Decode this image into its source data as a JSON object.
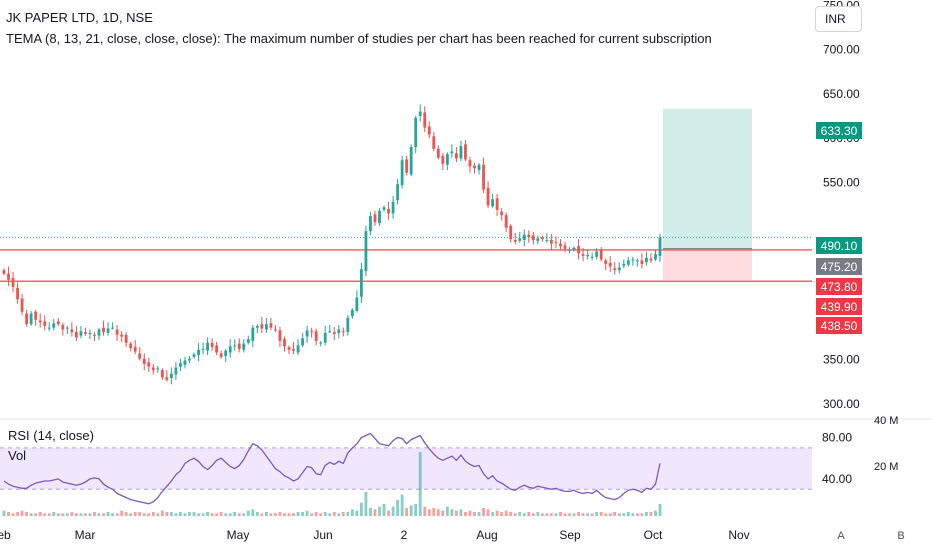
{
  "header": {
    "symbol_line": "JK PAPER LTD, 1D, NSE",
    "study_warning": "TEMA (8, 13, 21, close, close, close): The maximum number of studies per chart has been reached for current subscription"
  },
  "currency_button": "INR",
  "colors": {
    "up": "#26a69a",
    "down": "#ef5350",
    "resistance_line": "#e53935",
    "target_zone": "#b2dfdb",
    "stop_zone": "#ffcdd2",
    "rsi_line": "#7e57c2",
    "rsi_band": "#ede1fb",
    "label_green": "#089981",
    "label_gray": "#787b86",
    "label_red": "#f23645"
  },
  "chart_data": {
    "type": "candlestick",
    "price_axis": {
      "ticks": [
        "300.00",
        "350.00",
        "550.00",
        "600.00",
        "650.00",
        "700.00",
        "750.00"
      ],
      "range": [
        284,
        756
      ]
    },
    "time_axis": {
      "labels": [
        "eb",
        "Mar",
        "May",
        "Jun",
        "2",
        "Aug",
        "Sep",
        "Oct",
        "Nov"
      ]
    },
    "closes": [
      447,
      440,
      432,
      418,
      404,
      390,
      402,
      395,
      392,
      388,
      386,
      391,
      390,
      384,
      386,
      381,
      375,
      382,
      379,
      380,
      377,
      384,
      381,
      385,
      386,
      378,
      376,
      369,
      363,
      359,
      351,
      345,
      342,
      338,
      340,
      330,
      327,
      334,
      341,
      346,
      349,
      351,
      356,
      361,
      362,
      369,
      364,
      358,
      353,
      360,
      365,
      366,
      362,
      368,
      373,
      386,
      388,
      385,
      390,
      386,
      383,
      371,
      365,
      361,
      360,
      366,
      374,
      383,
      381,
      371,
      369,
      380,
      382,
      379,
      384,
      381,
      397,
      406,
      420,
      452,
      495,
      512,
      505,
      518,
      522,
      515,
      528,
      548,
      575,
      561,
      590,
      623,
      630,
      612,
      604,
      588,
      578,
      571,
      582,
      585,
      577,
      591,
      576,
      568,
      566,
      570,
      542,
      524,
      531,
      519,
      513,
      499,
      486,
      483,
      487,
      491,
      488,
      485,
      487,
      486,
      485,
      481,
      482,
      478,
      475,
      474,
      476,
      470,
      467,
      468,
      466,
      472,
      463,
      458,
      455,
      451,
      454,
      458,
      462,
      463,
      462,
      458,
      465,
      462,
      469,
      488
    ],
    "price_labels": [
      {
        "value": "633.30",
        "type": "target"
      },
      {
        "value": "490.10",
        "type": "last"
      },
      {
        "value": "475.20",
        "type": "entry"
      },
      {
        "value": "473.80",
        "type": "line"
      },
      {
        "value": "439.90",
        "type": "stop"
      },
      {
        "value": "438.50",
        "type": "line"
      }
    ],
    "horizontal_lines": [
      473.8,
      438.5
    ],
    "position": {
      "target": 633.3,
      "entry": 475.2,
      "stop": 439.9
    },
    "rsi": {
      "label": "RSI (14, close)",
      "ticks": [
        "80.00",
        "40.00"
      ],
      "band": [
        30,
        70
      ],
      "values": [
        38,
        35,
        33,
        32,
        31,
        31,
        34,
        36,
        37,
        38,
        38,
        39,
        40,
        37,
        36,
        35,
        34,
        35,
        37,
        40,
        41,
        40,
        35,
        32,
        30,
        26,
        24,
        22,
        20,
        19,
        18,
        17,
        16,
        18,
        22,
        28,
        33,
        38,
        44,
        48,
        55,
        58,
        60,
        57,
        52,
        49,
        53,
        58,
        60,
        56,
        52,
        50,
        53,
        59,
        67,
        74,
        72,
        68,
        62,
        56,
        50,
        47,
        43,
        41,
        38,
        40,
        46,
        52,
        51,
        45,
        44,
        53,
        56,
        54,
        57,
        55,
        65,
        70,
        74,
        80,
        82,
        84,
        79,
        74,
        73,
        72,
        77,
        80,
        79,
        74,
        78,
        80,
        82,
        75,
        69,
        64,
        60,
        58,
        60,
        62,
        58,
        63,
        57,
        54,
        52,
        53,
        45,
        40,
        43,
        38,
        36,
        33,
        30,
        29,
        32,
        34,
        32,
        31,
        33,
        32,
        31,
        30,
        31,
        29,
        28,
        28,
        29,
        27,
        26,
        27,
        26,
        29,
        25,
        22,
        21,
        20,
        22,
        26,
        29,
        30,
        29,
        27,
        31,
        30,
        35,
        55
      ]
    },
    "volume": {
      "label": "Vol",
      "ticks": [
        "40 M",
        "20 M"
      ],
      "values": [
        4,
        3,
        2,
        3,
        4,
        3,
        2,
        2,
        3,
        2,
        2,
        3,
        2,
        2,
        2,
        3,
        2,
        2,
        2,
        2,
        3,
        2,
        2,
        3,
        2,
        2,
        4,
        3,
        2,
        3,
        3,
        2,
        2,
        3,
        2,
        4,
        3,
        3,
        2,
        3,
        2,
        3,
        3,
        2,
        2,
        3,
        2,
        2,
        3,
        2,
        2,
        3,
        2,
        2,
        4,
        5,
        3,
        2,
        3,
        2,
        2,
        3,
        2,
        2,
        2,
        3,
        3,
        4,
        2,
        3,
        2,
        3,
        2,
        3,
        2,
        3,
        3,
        5,
        4,
        10,
        18,
        6,
        5,
        7,
        9,
        4,
        7,
        12,
        16,
        6,
        8,
        9,
        48,
        7,
        5,
        6,
        5,
        4,
        7,
        5,
        4,
        5,
        3,
        4,
        3,
        3,
        6,
        5,
        3,
        4,
        3,
        4,
        3,
        2,
        3,
        2,
        3,
        2,
        3,
        2,
        2,
        2,
        2,
        3,
        2,
        2,
        2,
        3,
        2,
        2,
        2,
        3,
        3,
        2,
        2,
        3,
        2,
        2,
        3,
        2,
        2,
        2,
        3,
        3,
        4,
        9
      ]
    }
  },
  "scale_buttons": {
    "auto": "A",
    "bars": "B"
  }
}
